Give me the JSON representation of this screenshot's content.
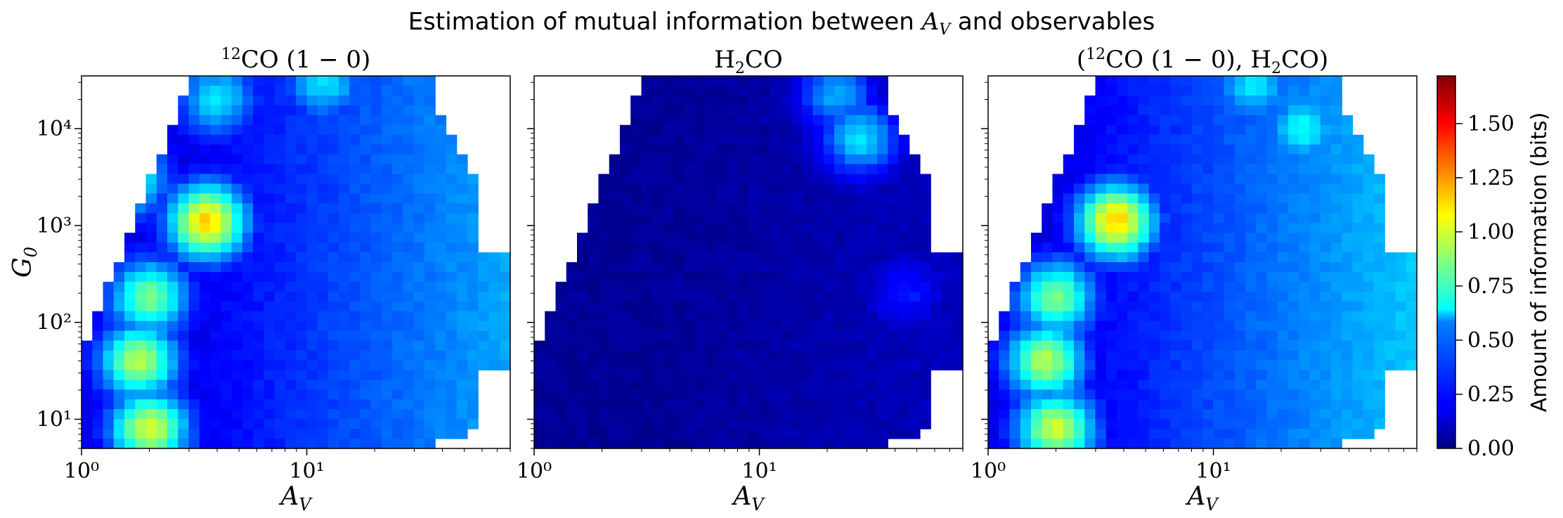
{
  "figure_title": "Estimation of mutual information between A_V and observables",
  "chart_data": [
    {
      "type": "heatmap",
      "title": "¹²CO (1 − 0)",
      "xlabel": "A_V",
      "ylabel": "G_0",
      "xscale": "log",
      "yscale": "log",
      "xlim": [
        1,
        80
      ],
      "ylim": [
        5,
        35000
      ],
      "xticks": [
        "10⁰",
        "10¹"
      ],
      "yticks": [
        "10¹",
        "10²",
        "10³",
        "10⁴"
      ],
      "colormap": "jet",
      "hotspots": [
        {
          "A_V": 3.6,
          "G_0": 1100,
          "bits": 1.15
        },
        {
          "A_V": 2.0,
          "G_0": 8,
          "bits": 1.0
        },
        {
          "A_V": 1.8,
          "G_0": 40,
          "bits": 0.95
        },
        {
          "A_V": 2.0,
          "G_0": 180,
          "bits": 0.85
        },
        {
          "A_V": 1.6,
          "G_0": 3000,
          "bits": 0.75
        },
        {
          "A_V": 4.0,
          "G_0": 20000,
          "bits": 0.6
        },
        {
          "A_V": 12,
          "G_0": 30000,
          "bits": 0.6
        }
      ]
    },
    {
      "type": "heatmap",
      "title": "H₂CO",
      "xlabel": "A_V",
      "xscale": "log",
      "yscale": "log",
      "xlim": [
        1,
        80
      ],
      "ylim": [
        5,
        35000
      ],
      "xticks": [
        "10⁰",
        "10¹"
      ],
      "colormap": "jet",
      "hotspots": [
        {
          "A_V": 28,
          "G_0": 8000,
          "bits": 0.6
        },
        {
          "A_V": 22,
          "G_0": 22000,
          "bits": 0.5
        },
        {
          "A_V": 45,
          "G_0": 200,
          "bits": 0.25
        }
      ]
    },
    {
      "type": "heatmap",
      "title": "(¹²CO (1 − 0), H₂CO)",
      "xlabel": "A_V",
      "xscale": "log",
      "yscale": "log",
      "xlim": [
        1,
        80
      ],
      "ylim": [
        5,
        35000
      ],
      "xticks": [
        "10⁰",
        "10¹"
      ],
      "colormap": "jet",
      "hotspots": [
        {
          "A_V": 3.7,
          "G_0": 1100,
          "bits": 1.15
        },
        {
          "A_V": 2.0,
          "G_0": 8,
          "bits": 1.0
        },
        {
          "A_V": 1.8,
          "G_0": 40,
          "bits": 0.95
        },
        {
          "A_V": 2.0,
          "G_0": 180,
          "bits": 0.85
        },
        {
          "A_V": 25,
          "G_0": 10000,
          "bits": 0.65
        },
        {
          "A_V": 15,
          "G_0": 28000,
          "bits": 0.6
        },
        {
          "A_V": 40,
          "G_0": 200,
          "bits": 0.5
        }
      ]
    }
  ],
  "colorbar": {
    "label": "Amount of information (bits)",
    "vmin": 0,
    "vmax": 1.72,
    "ticks": [
      "0.00",
      "0.25",
      "0.50",
      "0.75",
      "1.00",
      "1.25",
      "1.50"
    ],
    "tick_values": [
      0,
      0.25,
      0.5,
      0.75,
      1.0,
      1.25,
      1.5
    ]
  }
}
